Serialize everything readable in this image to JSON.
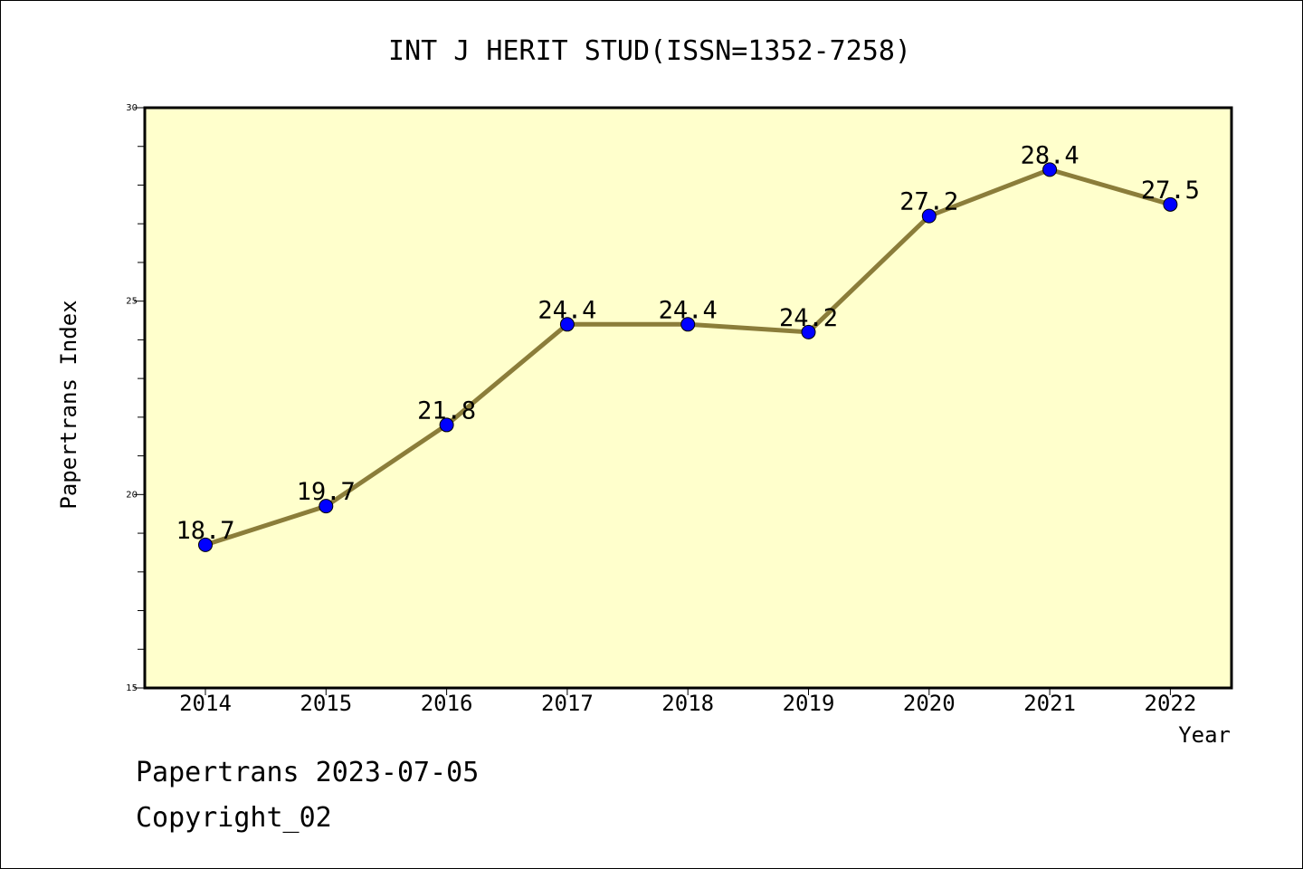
{
  "chart_data": {
    "type": "line",
    "title": "INT J HERIT STUD(ISSN=1352-7258)",
    "xlabel": "Year",
    "ylabel": "Papertrans Index",
    "categories": [
      "2014",
      "2015",
      "2016",
      "2017",
      "2018",
      "2019",
      "2020",
      "2021",
      "2022"
    ],
    "series": [
      {
        "values": [
          18.7,
          19.7,
          21.8,
          24.4,
          24.4,
          24.2,
          27.2,
          28.4,
          27.5
        ],
        "labels": [
          "18.7",
          "19.7",
          "21.8",
          "24.4",
          "24.4",
          "24.2",
          "27.2",
          "28.4",
          "27.5"
        ]
      }
    ],
    "ylim": [
      15,
      30
    ],
    "yticks": [
      "15",
      "20",
      "25",
      "30"
    ],
    "grid": false,
    "legend": "none",
    "colors": {
      "plot_background": "#ffffcc",
      "line": "#8b7d3a",
      "marker": "#0000ff"
    }
  },
  "footer": {
    "line1": "Papertrans 2023-07-05",
    "line2": "Copyright_02"
  }
}
